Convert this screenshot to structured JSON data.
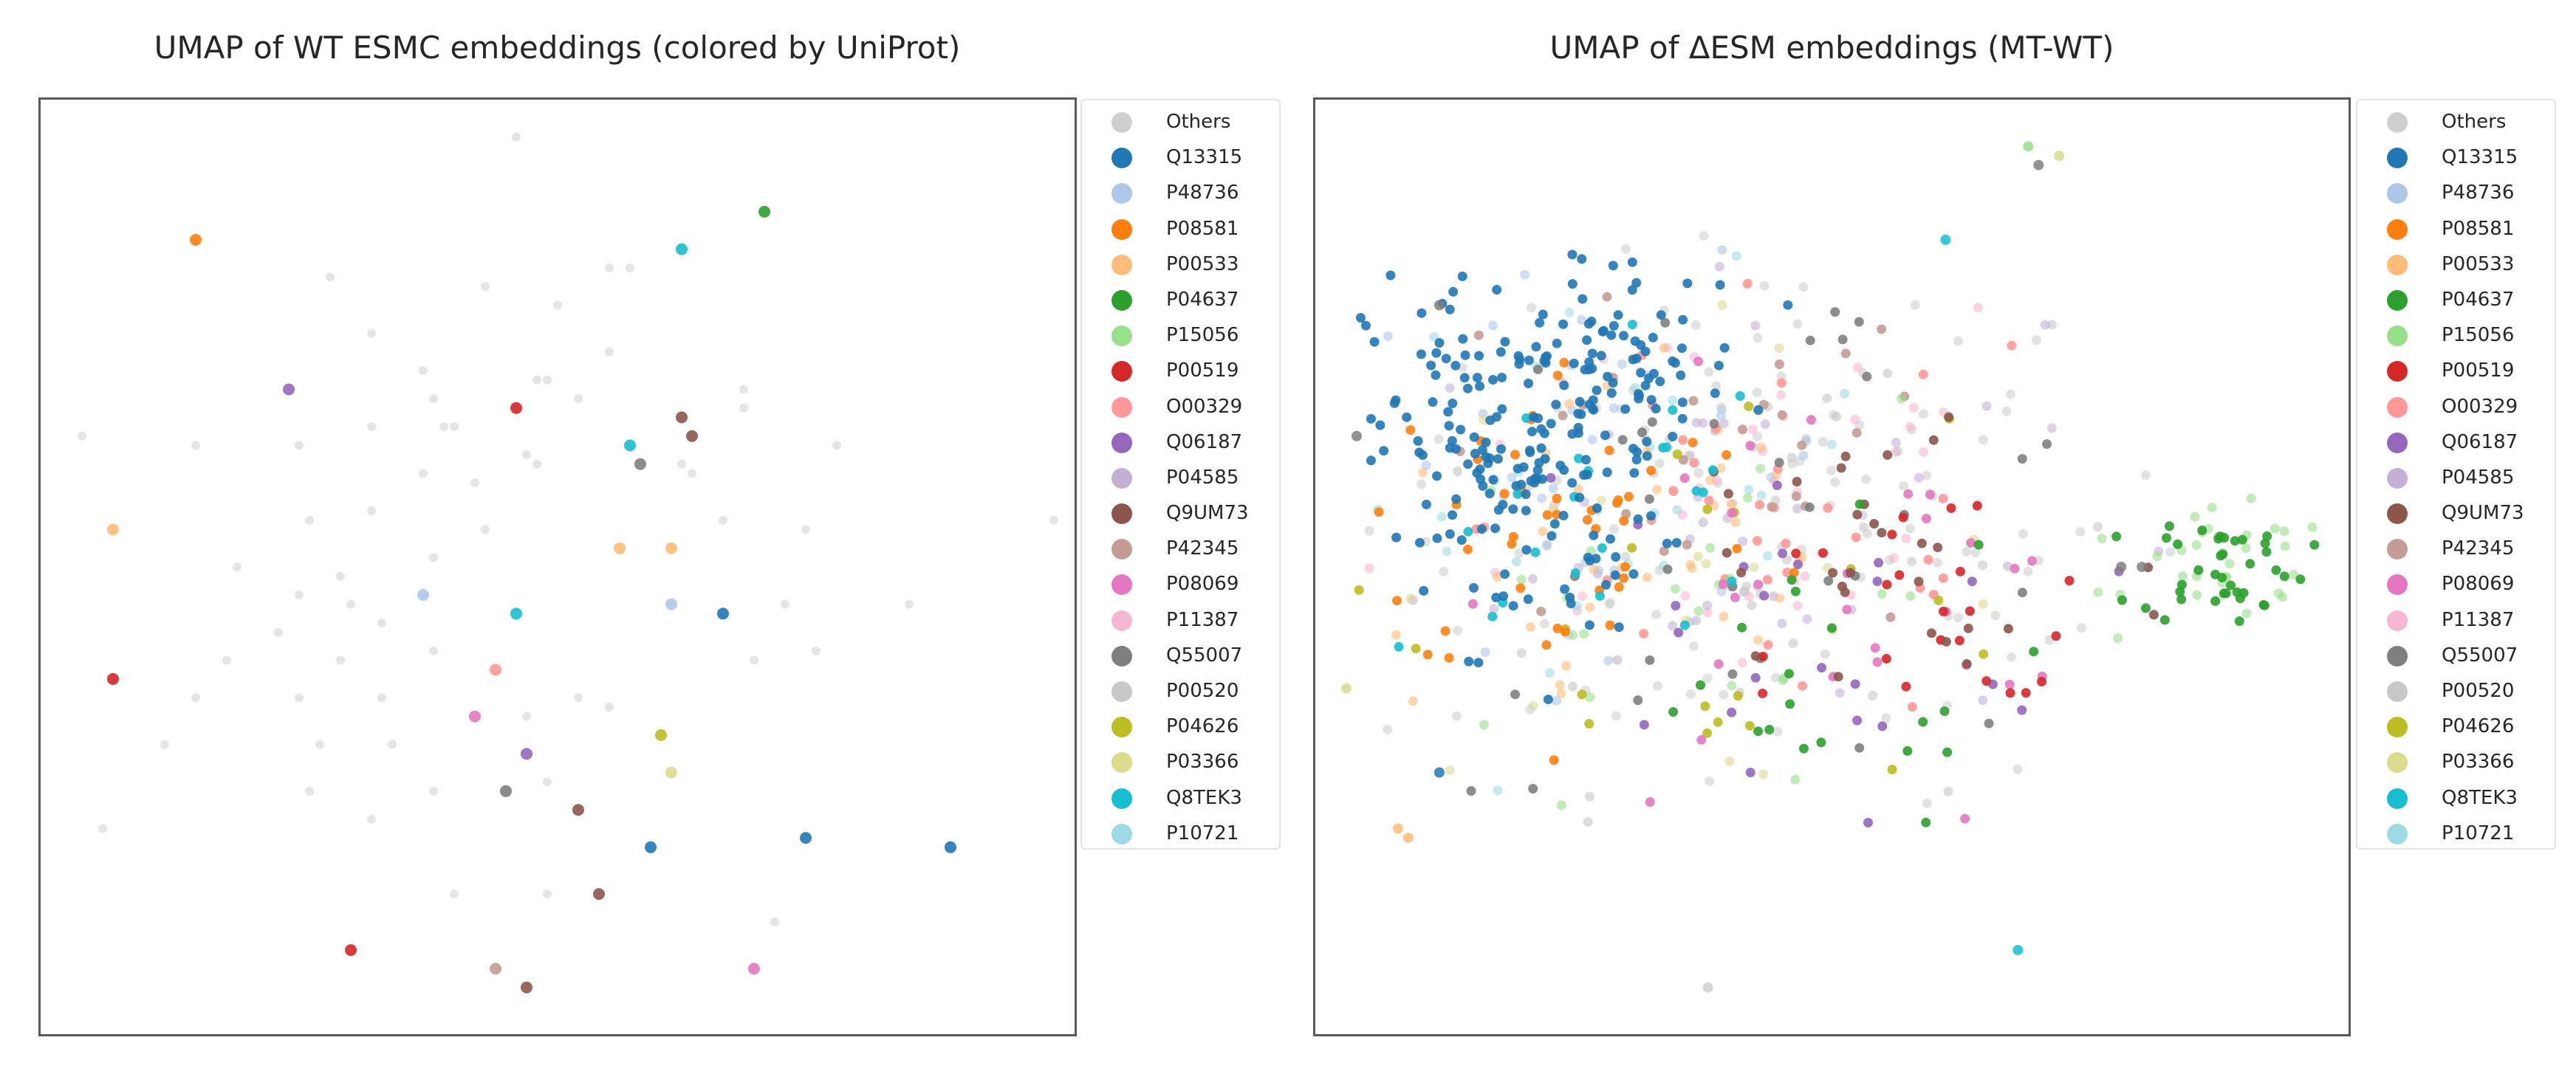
{
  "figure": {
    "panels": [
      {
        "id": "left",
        "title": "UMAP of WT ESMC embeddings (colored by UniProt)"
      },
      {
        "id": "right",
        "title": "UMAP of ΔESM embeddings (MT-WT)"
      }
    ]
  },
  "legend": {
    "items": [
      {
        "label": "Others",
        "color": "#cfcfcf"
      },
      {
        "label": "Q13315",
        "color": "#1f77b4"
      },
      {
        "label": "P48736",
        "color": "#aec7e8"
      },
      {
        "label": "P08581",
        "color": "#ff7f0e"
      },
      {
        "label": "P00533",
        "color": "#ffbb78"
      },
      {
        "label": "P04637",
        "color": "#2ca02c"
      },
      {
        "label": "P15056",
        "color": "#98df8a"
      },
      {
        "label": "P00519",
        "color": "#d62728"
      },
      {
        "label": "O00329",
        "color": "#ff9896"
      },
      {
        "label": "Q06187",
        "color": "#9467bd"
      },
      {
        "label": "P04585",
        "color": "#c5b0d5"
      },
      {
        "label": "Q9UM73",
        "color": "#8c564b"
      },
      {
        "label": "P42345",
        "color": "#c49c94"
      },
      {
        "label": "P08069",
        "color": "#e377c2"
      },
      {
        "label": "P11387",
        "color": "#f7b6d2"
      },
      {
        "label": "Q55007",
        "color": "#7f7f7f"
      },
      {
        "label": "P00520",
        "color": "#c7c7c7"
      },
      {
        "label": "P04626",
        "color": "#bcbd22"
      },
      {
        "label": "P03366",
        "color": "#dbdb8d"
      },
      {
        "label": "Q8TEK3",
        "color": "#17becf"
      },
      {
        "label": "P10721",
        "color": "#9edae5"
      }
    ]
  },
  "chart_data": [
    {
      "type": "scatter",
      "title": "UMAP of WT ESMC embeddings (colored by UniProt)",
      "xlabel": "",
      "ylabel": "",
      "grid": false,
      "axes_ticks": false,
      "legend_position": "outside right",
      "xlim": [
        0,
        100
      ],
      "ylim": [
        0,
        100
      ],
      "points": [
        {
          "x": 46,
          "y": 96,
          "c": "Others"
        },
        {
          "x": 15,
          "y": 85,
          "c": "P08581"
        },
        {
          "x": 70,
          "y": 88,
          "c": "P04637"
        },
        {
          "x": 62,
          "y": 84,
          "c": "Q8TEK3"
        },
        {
          "x": 28,
          "y": 81,
          "c": "Others"
        },
        {
          "x": 43,
          "y": 80,
          "c": "Others"
        },
        {
          "x": 55,
          "y": 82,
          "c": "Others"
        },
        {
          "x": 57,
          "y": 82,
          "c": "Others"
        },
        {
          "x": 50,
          "y": 78,
          "c": "Others"
        },
        {
          "x": 32,
          "y": 75,
          "c": "Others"
        },
        {
          "x": 55,
          "y": 73,
          "c": "Others"
        },
        {
          "x": 37,
          "y": 71,
          "c": "Others"
        },
        {
          "x": 24,
          "y": 69,
          "c": "Q06187"
        },
        {
          "x": 48,
          "y": 70,
          "c": "Others"
        },
        {
          "x": 49,
          "y": 70,
          "c": "Others"
        },
        {
          "x": 52,
          "y": 68,
          "c": "Others"
        },
        {
          "x": 38,
          "y": 68,
          "c": "Others"
        },
        {
          "x": 46,
          "y": 67,
          "c": "P00519"
        },
        {
          "x": 68,
          "y": 69,
          "c": "Others"
        },
        {
          "x": 68,
          "y": 67,
          "c": "Others"
        },
        {
          "x": 62,
          "y": 66,
          "c": "Q9UM73"
        },
        {
          "x": 63,
          "y": 64,
          "c": "Q9UM73"
        },
        {
          "x": 32,
          "y": 65,
          "c": "Others"
        },
        {
          "x": 39,
          "y": 65,
          "c": "Others"
        },
        {
          "x": 40,
          "y": 65,
          "c": "Others"
        },
        {
          "x": 4,
          "y": 64,
          "c": "Others"
        },
        {
          "x": 15,
          "y": 63,
          "c": "Others"
        },
        {
          "x": 25,
          "y": 63,
          "c": "Others"
        },
        {
          "x": 47,
          "y": 62,
          "c": "Others"
        },
        {
          "x": 48,
          "y": 61,
          "c": "Others"
        },
        {
          "x": 57,
          "y": 63,
          "c": "Q8TEK3"
        },
        {
          "x": 58,
          "y": 61,
          "c": "Q55007"
        },
        {
          "x": 62,
          "y": 61,
          "c": "Others"
        },
        {
          "x": 63,
          "y": 60,
          "c": "Others"
        },
        {
          "x": 77,
          "y": 63,
          "c": "Others"
        },
        {
          "x": 37,
          "y": 60,
          "c": "Others"
        },
        {
          "x": 42,
          "y": 59,
          "c": "Others"
        },
        {
          "x": 98,
          "y": 55,
          "c": "Others"
        },
        {
          "x": 7,
          "y": 54,
          "c": "P00533"
        },
        {
          "x": 26,
          "y": 55,
          "c": "Others"
        },
        {
          "x": 32,
          "y": 56,
          "c": "Others"
        },
        {
          "x": 43,
          "y": 54,
          "c": "Others"
        },
        {
          "x": 66,
          "y": 55,
          "c": "Others"
        },
        {
          "x": 74,
          "y": 54,
          "c": "Others"
        },
        {
          "x": 56,
          "y": 52,
          "c": "P00533"
        },
        {
          "x": 61,
          "y": 52,
          "c": "P00533"
        },
        {
          "x": 19,
          "y": 50,
          "c": "Others"
        },
        {
          "x": 29,
          "y": 49,
          "c": "Others"
        },
        {
          "x": 38,
          "y": 51,
          "c": "Others"
        },
        {
          "x": 30,
          "y": 46,
          "c": "Others"
        },
        {
          "x": 25,
          "y": 47,
          "c": "Others"
        },
        {
          "x": 37,
          "y": 47,
          "c": "P48736"
        },
        {
          "x": 61,
          "y": 46,
          "c": "P48736"
        },
        {
          "x": 66,
          "y": 45,
          "c": "Q13315"
        },
        {
          "x": 72,
          "y": 46,
          "c": "Others"
        },
        {
          "x": 84,
          "y": 46,
          "c": "Others"
        },
        {
          "x": 46,
          "y": 45,
          "c": "Q8TEK3"
        },
        {
          "x": 33,
          "y": 44,
          "c": "Others"
        },
        {
          "x": 23,
          "y": 43,
          "c": "Others"
        },
        {
          "x": 18,
          "y": 40,
          "c": "Others"
        },
        {
          "x": 29,
          "y": 40,
          "c": "Others"
        },
        {
          "x": 38,
          "y": 41,
          "c": "Others"
        },
        {
          "x": 44,
          "y": 39,
          "c": "O00329"
        },
        {
          "x": 75,
          "y": 41,
          "c": "Others"
        },
        {
          "x": 69,
          "y": 40,
          "c": "Others"
        },
        {
          "x": 7,
          "y": 38,
          "c": "P00519"
        },
        {
          "x": 15,
          "y": 36,
          "c": "Others"
        },
        {
          "x": 25,
          "y": 36,
          "c": "Others"
        },
        {
          "x": 33,
          "y": 36,
          "c": "Others"
        },
        {
          "x": 52,
          "y": 36,
          "c": "Others"
        },
        {
          "x": 42,
          "y": 34,
          "c": "P08069"
        },
        {
          "x": 47,
          "y": 34,
          "c": "Others"
        },
        {
          "x": 55,
          "y": 35,
          "c": "Others"
        },
        {
          "x": 12,
          "y": 31,
          "c": "Others"
        },
        {
          "x": 60,
          "y": 32,
          "c": "P04626"
        },
        {
          "x": 27,
          "y": 31,
          "c": "Others"
        },
        {
          "x": 34,
          "y": 31,
          "c": "Others"
        },
        {
          "x": 47,
          "y": 30,
          "c": "Q06187"
        },
        {
          "x": 61,
          "y": 28,
          "c": "P03366"
        },
        {
          "x": 26,
          "y": 26,
          "c": "Others"
        },
        {
          "x": 38,
          "y": 26,
          "c": "Others"
        },
        {
          "x": 45,
          "y": 26,
          "c": "Q55007"
        },
        {
          "x": 49,
          "y": 27,
          "c": "Others"
        },
        {
          "x": 32,
          "y": 23,
          "c": "Others"
        },
        {
          "x": 52,
          "y": 24,
          "c": "Q9UM73"
        },
        {
          "x": 6,
          "y": 22,
          "c": "Others"
        },
        {
          "x": 59,
          "y": 20,
          "c": "Q13315"
        },
        {
          "x": 74,
          "y": 21,
          "c": "Q13315"
        },
        {
          "x": 88,
          "y": 20,
          "c": "Q13315"
        },
        {
          "x": 40,
          "y": 15,
          "c": "Others"
        },
        {
          "x": 49,
          "y": 15,
          "c": "Others"
        },
        {
          "x": 54,
          "y": 15,
          "c": "Q9UM73"
        },
        {
          "x": 71,
          "y": 12,
          "c": "Others"
        },
        {
          "x": 30,
          "y": 9,
          "c": "P00519"
        },
        {
          "x": 44,
          "y": 7,
          "c": "P42345"
        },
        {
          "x": 69,
          "y": 7,
          "c": "P08069"
        },
        {
          "x": 47,
          "y": 5,
          "c": "Q9UM73"
        }
      ]
    },
    {
      "type": "scatter",
      "title": "UMAP of ΔESM embeddings (MT-WT)",
      "xlabel": "",
      "ylabel": "",
      "grid": false,
      "axes_ticks": false,
      "legend_position": "outside right",
      "xlim": [
        0,
        100
      ],
      "ylim": [
        0,
        100
      ],
      "clusters": [
        {
          "c": "Q13315",
          "cx": 19,
          "cy": 62,
          "sx": 7,
          "sy": 10,
          "n": 180
        },
        {
          "c": "Q13315",
          "cx": 30,
          "cy": 72,
          "sx": 6,
          "sy": 5,
          "n": 60
        },
        {
          "c": "P08581",
          "cx": 25,
          "cy": 55,
          "sx": 10,
          "sy": 9,
          "n": 45
        },
        {
          "c": "P00533",
          "cx": 30,
          "cy": 50,
          "sx": 14,
          "sy": 12,
          "n": 35
        },
        {
          "c": "P04637",
          "cx": 88,
          "cy": 50,
          "sx": 4,
          "sy": 3,
          "n": 40
        },
        {
          "c": "P04637",
          "cx": 45,
          "cy": 38,
          "sx": 12,
          "sy": 8,
          "n": 20
        },
        {
          "c": "P15056",
          "cx": 89,
          "cy": 50,
          "sx": 5,
          "sy": 3,
          "n": 30
        },
        {
          "c": "P15056",
          "cx": 40,
          "cy": 45,
          "sx": 15,
          "sy": 12,
          "n": 25
        },
        {
          "c": "P00519",
          "cx": 60,
          "cy": 40,
          "sx": 8,
          "sy": 10,
          "n": 25
        },
        {
          "c": "O00329",
          "cx": 45,
          "cy": 55,
          "sx": 14,
          "sy": 12,
          "n": 35
        },
        {
          "c": "Q06187",
          "cx": 45,
          "cy": 45,
          "sx": 14,
          "sy": 10,
          "n": 25
        },
        {
          "c": "P04585",
          "cx": 40,
          "cy": 55,
          "sx": 15,
          "sy": 12,
          "n": 40
        },
        {
          "c": "Q9UM73",
          "cx": 55,
          "cy": 50,
          "sx": 15,
          "sy": 12,
          "n": 30
        },
        {
          "c": "P42345",
          "cx": 35,
          "cy": 60,
          "sx": 14,
          "sy": 10,
          "n": 25
        },
        {
          "c": "P08069",
          "cx": 50,
          "cy": 45,
          "sx": 15,
          "sy": 12,
          "n": 30
        },
        {
          "c": "P11387",
          "cx": 40,
          "cy": 60,
          "sx": 16,
          "sy": 12,
          "n": 40
        },
        {
          "c": "Q55007",
          "cx": 45,
          "cy": 55,
          "sx": 18,
          "sy": 14,
          "n": 35
        },
        {
          "c": "P00520",
          "cx": 45,
          "cy": 55,
          "sx": 18,
          "sy": 14,
          "n": 40
        },
        {
          "c": "P04626",
          "cx": 40,
          "cy": 50,
          "sx": 16,
          "sy": 12,
          "n": 20
        },
        {
          "c": "P03366",
          "cx": 35,
          "cy": 50,
          "sx": 16,
          "sy": 12,
          "n": 20
        },
        {
          "c": "Q8TEK3",
          "cx": 25,
          "cy": 58,
          "sx": 10,
          "sy": 10,
          "n": 25
        },
        {
          "c": "P10721",
          "cx": 30,
          "cy": 60,
          "sx": 12,
          "sy": 10,
          "n": 30
        },
        {
          "c": "P48736",
          "cx": 28,
          "cy": 62,
          "sx": 12,
          "sy": 10,
          "n": 30
        },
        {
          "c": "Others",
          "cx": 45,
          "cy": 55,
          "sx": 20,
          "sy": 15,
          "n": 120
        }
      ],
      "outliers": [
        {
          "x": 69,
          "y": 95,
          "c": "P15056"
        },
        {
          "x": 70,
          "y": 93,
          "c": "Q55007"
        },
        {
          "x": 72,
          "y": 94,
          "c": "P03366"
        },
        {
          "x": 61,
          "y": 85,
          "c": "Q8TEK3"
        },
        {
          "x": 4,
          "y": 64,
          "c": "Q55007"
        },
        {
          "x": 12,
          "y": 78,
          "c": "Q55007"
        },
        {
          "x": 12,
          "y": 28,
          "c": "Q13315"
        },
        {
          "x": 9,
          "y": 21,
          "c": "P00533"
        },
        {
          "x": 8,
          "y": 22,
          "c": "P00533"
        },
        {
          "x": 68,
          "y": 9,
          "c": "Q8TEK3"
        },
        {
          "x": 38,
          "y": 5,
          "c": "Others"
        },
        {
          "x": 3,
          "y": 37,
          "c": "P03366"
        },
        {
          "x": 78,
          "y": 50,
          "c": "Q55007"
        },
        {
          "x": 80,
          "y": 50,
          "c": "Q55007"
        }
      ]
    }
  ]
}
